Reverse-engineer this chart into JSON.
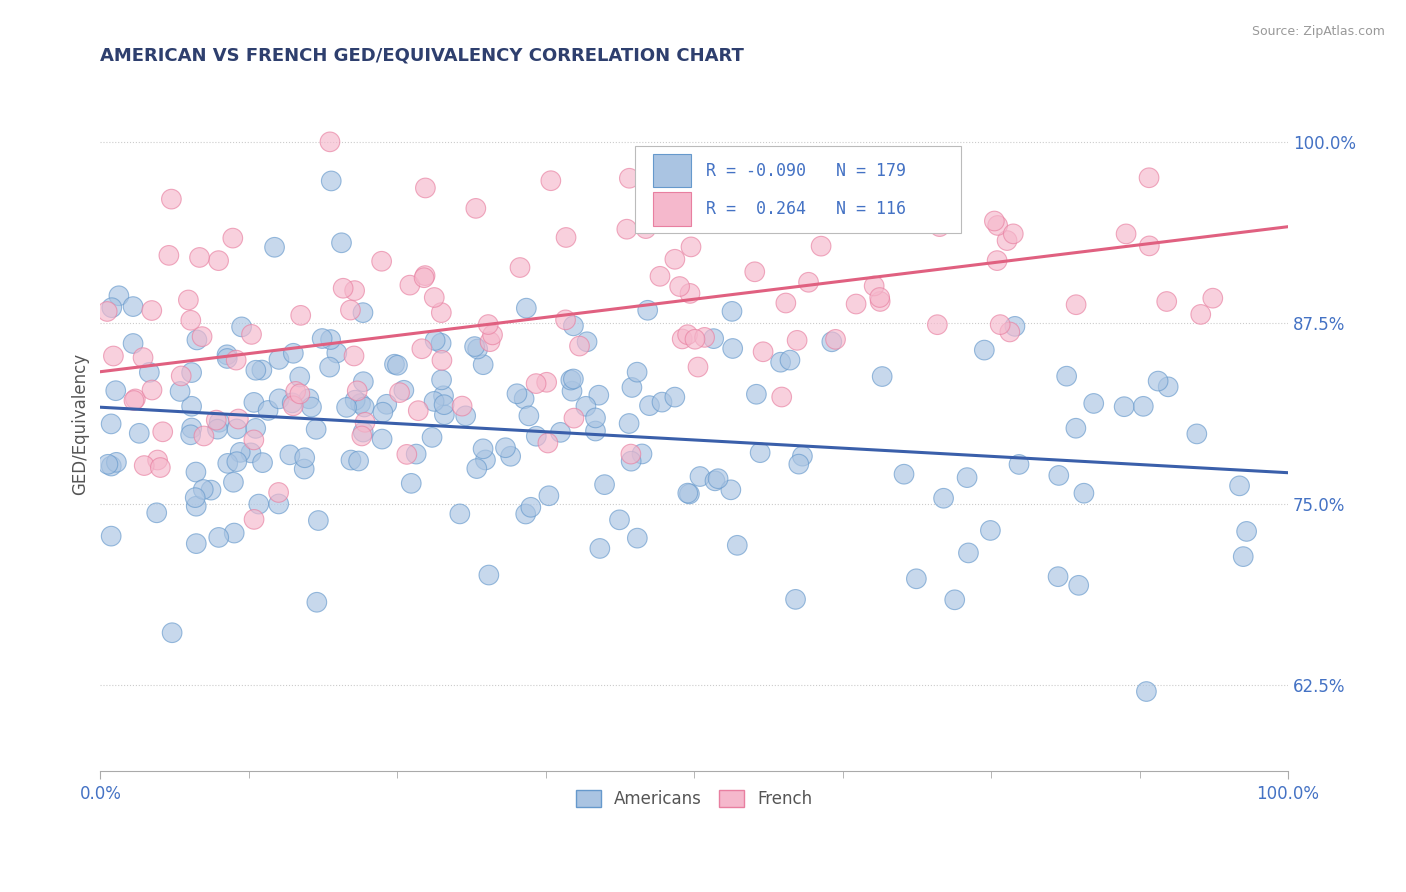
{
  "title": "AMERICAN VS FRENCH GED/EQUIVALENCY CORRELATION CHART",
  "source": "Source: ZipAtlas.com",
  "ylabel": "GED/Equivalency",
  "xlim": [
    0.0,
    1.0
  ],
  "ylim": [
    0.565,
    1.045
  ],
  "ytick_labels": [
    "62.5%",
    "75.0%",
    "87.5%",
    "100.0%"
  ],
  "ytick_positions": [
    0.625,
    0.75,
    0.875,
    1.0
  ],
  "american_color": "#aac4e2",
  "american_edge": "#6699cc",
  "french_color": "#f5b8cc",
  "french_edge": "#e87fa0",
  "trend_american_color": "#3a5faa",
  "trend_french_color": "#e06080",
  "r_american": -0.09,
  "n_american": 179,
  "r_french": 0.264,
  "n_french": 116,
  "grid_color": "#cccccc",
  "background_color": "#ffffff",
  "title_color": "#2e3f6e",
  "label_color": "#4472c4",
  "dot_size": 200
}
